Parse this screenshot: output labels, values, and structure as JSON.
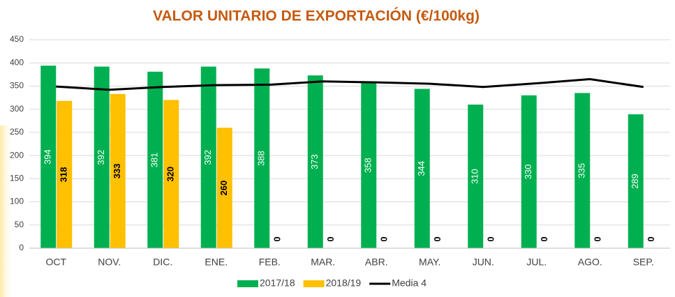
{
  "chart_data": {
    "type": "bar",
    "title": "VALOR UNITARIO DE EXPORTACIÓN (€/100kg)",
    "categories": [
      "OCT",
      "NOV.",
      "DIC.",
      "ENE.",
      "FEB.",
      "MAR.",
      "ABR.",
      "MAY.",
      "JUN.",
      "JUL.",
      "AGO.",
      "SEP."
    ],
    "series": [
      {
        "name": "2017/18",
        "color": "#00b050",
        "mark": "bar",
        "values": [
          394,
          392,
          381,
          392,
          388,
          373,
          358,
          344,
          310,
          330,
          335,
          289
        ]
      },
      {
        "name": "2018/19",
        "color": "#ffc000",
        "mark": "bar",
        "values": [
          318,
          333,
          320,
          260,
          0,
          0,
          0,
          0,
          0,
          0,
          0,
          0
        ]
      },
      {
        "name": "Media 4",
        "color": "#000000",
        "mark": "line",
        "values": [
          349,
          342,
          348,
          352,
          353,
          360,
          358,
          355,
          348,
          356,
          365,
          348
        ]
      }
    ],
    "ylim": [
      0,
      450
    ],
    "yticks": [
      0,
      50,
      100,
      150,
      200,
      250,
      300,
      350,
      400,
      450
    ],
    "grid": true,
    "legend": "bottom"
  }
}
